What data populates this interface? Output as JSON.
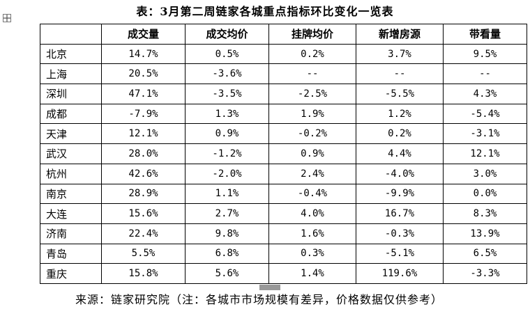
{
  "title": "表：3月第二周链家各城重点指标环比变化一览表",
  "table": {
    "header": [
      "成交量",
      "成交均价",
      "挂牌均价",
      "新增房源",
      "带看量"
    ],
    "rows": [
      [
        "北京",
        "14.7%",
        "0.5%",
        "0.2%",
        "3.7%",
        "9.5%"
      ],
      [
        "上海",
        "20.5%",
        "-3.6%",
        "--",
        "--",
        "--"
      ],
      [
        "深圳",
        "47.1%",
        "-3.5%",
        "-2.5%",
        "-5.5%",
        "4.3%"
      ],
      [
        "成都",
        "-7.9%",
        "1.3%",
        "1.9%",
        "1.2%",
        "-5.4%"
      ],
      [
        "天津",
        "12.1%",
        "0.9%",
        "-0.2%",
        "0.2%",
        "-3.1%"
      ],
      [
        "武汉",
        "28.0%",
        "-1.2%",
        "0.9%",
        "4.4%",
        "12.1%"
      ],
      [
        "杭州",
        "42.6%",
        "-2.0%",
        "2.4%",
        "-4.0%",
        "3.0%"
      ],
      [
        "南京",
        "28.9%",
        "1.1%",
        "-0.4%",
        "-9.9%",
        "0.0%"
      ],
      [
        "大连",
        "15.6%",
        "2.7%",
        "4.0%",
        "16.7%",
        "8.3%"
      ],
      [
        "济南",
        "22.4%",
        "9.8%",
        "1.6%",
        "-0.3%",
        "13.9%"
      ],
      [
        "青岛",
        "5.5%",
        "6.8%",
        "0.3%",
        "-5.1%",
        "6.5%"
      ],
      [
        "重庆",
        "15.8%",
        "5.6%",
        "1.4%",
        "119.6%",
        "-3.3%"
      ]
    ]
  },
  "footer": "来源：链家研究院（注：各城市市场规模有差异，价格数据仅供参考）"
}
